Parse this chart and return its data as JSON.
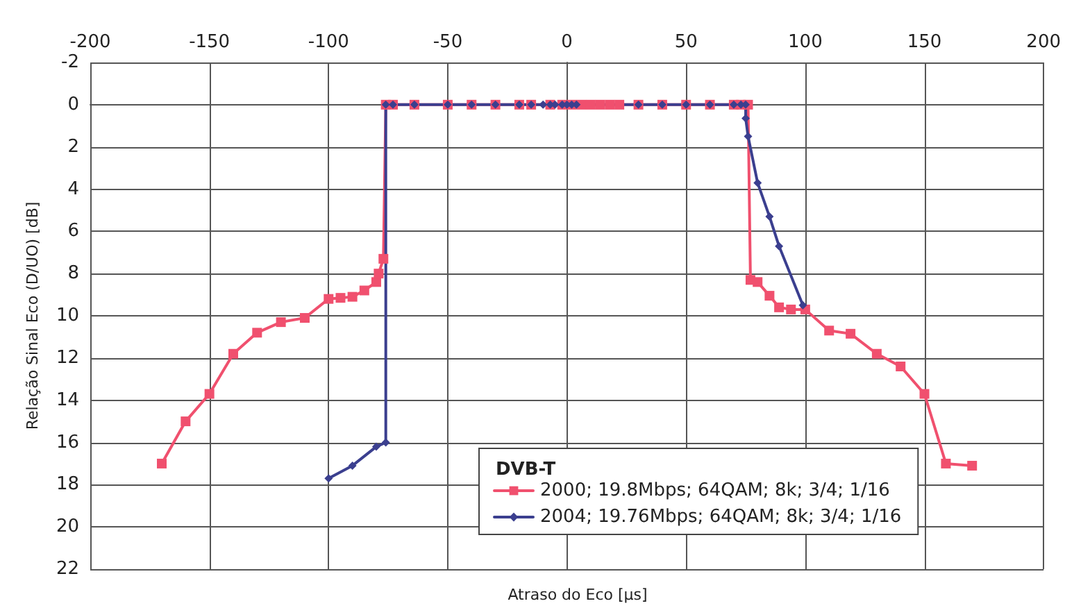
{
  "chart_data": {
    "type": "line",
    "xlabel": "Atraso do Eco [µs]",
    "ylabel": "Relação Sinal Eco (D/UO) [dB]",
    "legend_title": "DVB-T",
    "xlim": [
      -200,
      200
    ],
    "xticks": [
      -200,
      -150,
      -100,
      -50,
      0,
      50,
      100,
      150,
      200
    ],
    "ylim": [
      22,
      -2
    ],
    "yticks": [
      -2,
      0,
      2,
      4,
      6,
      8,
      10,
      12,
      14,
      16,
      18,
      20,
      22
    ],
    "grid": true,
    "legend": "bottom right",
    "line_style": "solid",
    "series": [
      {
        "name": "2000; 19.8Mbps; 64QAM; 8k; 3/4; 1/16",
        "color": "#f0506e",
        "marker": "square",
        "x": [
          -170,
          -160,
          -150,
          -140,
          -130,
          -120,
          -110,
          -100,
          -95,
          -90,
          -85,
          -80,
          -79,
          -77,
          -76,
          -73,
          -64,
          -50,
          -40,
          -30,
          -20,
          -15,
          -7,
          -2,
          2,
          6,
          10,
          14,
          18,
          22,
          30,
          40,
          50,
          60,
          70,
          73,
          76,
          77,
          80,
          85,
          89,
          94,
          100,
          110,
          119,
          130,
          140,
          150,
          159,
          170
        ],
        "values": [
          17,
          15,
          13.7,
          11.8,
          10.8,
          10.3,
          10.1,
          9.2,
          9.15,
          9.1,
          8.8,
          8.4,
          8,
          7.3,
          0,
          0,
          0,
          0,
          0,
          0,
          0,
          0,
          0,
          0,
          0,
          0,
          0,
          0,
          0,
          0,
          0,
          0,
          0,
          0,
          0,
          0,
          0,
          8.3,
          8.4,
          9.05,
          9.6,
          9.7,
          9.7,
          10.7,
          10.85,
          11.8,
          12.4,
          13.7,
          17,
          17.1
        ]
      },
      {
        "name": "2004; 19.76Mbps; 64QAM; 8k; 3/4; 1/16",
        "color": "#3b3f8f",
        "marker": "diamond",
        "x": [
          -100,
          -90,
          -80,
          -76,
          -76,
          -73,
          -64,
          -50,
          -40,
          -30,
          -20,
          -15,
          -10,
          -7,
          -5,
          -2,
          0,
          2,
          4,
          30,
          40,
          50,
          60,
          70,
          73,
          75,
          75,
          76,
          80,
          85,
          89,
          99
        ],
        "values": [
          17.7,
          17.1,
          16.2,
          16,
          0,
          0,
          0,
          0,
          0,
          0,
          0,
          0,
          0,
          0,
          0,
          0,
          0,
          0,
          0,
          0,
          0,
          0,
          0,
          0,
          0,
          0,
          0.65,
          1.5,
          3.7,
          5.3,
          6.7,
          9.5
        ]
      }
    ]
  }
}
